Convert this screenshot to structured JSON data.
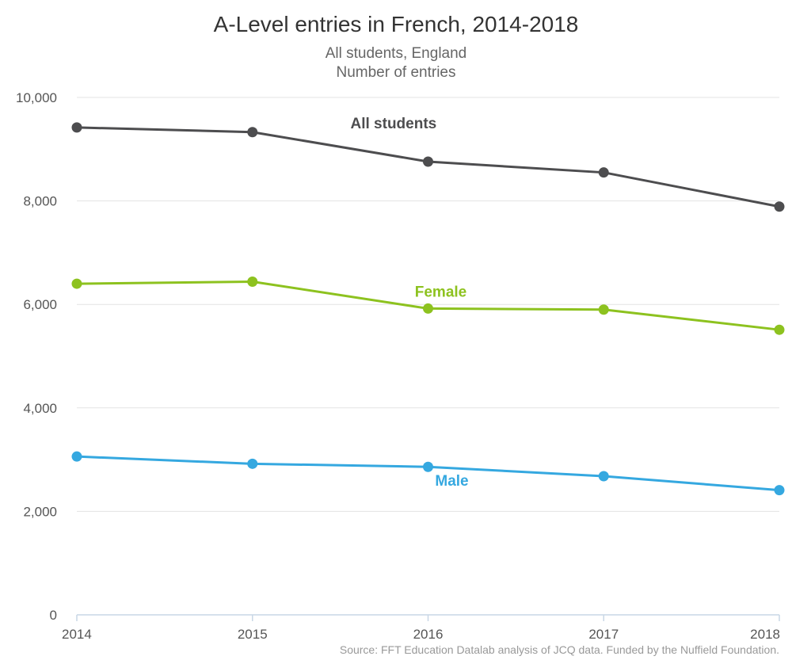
{
  "chart_data": {
    "type": "line",
    "title": "A-Level entries in French, 2014-2018",
    "subtitle_lines": [
      "All students, England",
      "Number of entries"
    ],
    "source": "Source: FFT Education Datalab analysis of JCQ data. Funded by the Nuffield Foundation.",
    "x": [
      "2014",
      "2015",
      "2016",
      "2017",
      "2018"
    ],
    "ylim": [
      0,
      10000
    ],
    "yticks": [
      0,
      2000,
      4000,
      6000,
      8000,
      10000
    ],
    "ytick_labels": [
      "0",
      "2,000",
      "4,000",
      "6,000",
      "8,000",
      "10,000"
    ],
    "grid": true,
    "legend": "inline labels",
    "series": [
      {
        "name": "All students",
        "color": "#4d4d4f",
        "values": [
          9420,
          9330,
          8760,
          8550,
          7890
        ]
      },
      {
        "name": "Female",
        "color": "#8dc21f",
        "values": [
          6400,
          6440,
          5920,
          5900,
          5510
        ]
      },
      {
        "name": "Male",
        "color": "#35a8e0",
        "values": [
          3060,
          2920,
          2860,
          2680,
          2410
        ]
      }
    ]
  }
}
